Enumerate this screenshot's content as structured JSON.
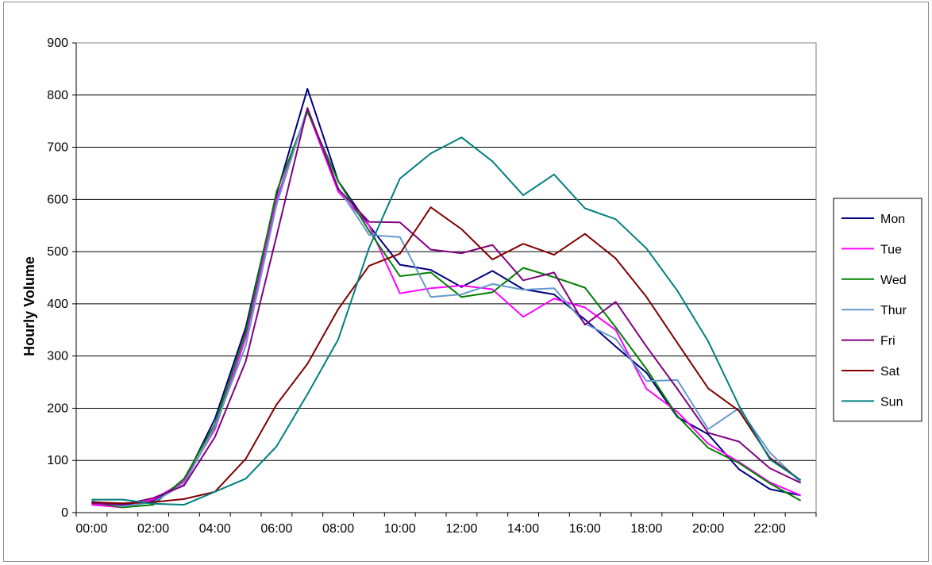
{
  "chart_data": {
    "type": "line",
    "title": "",
    "xlabel": "",
    "ylabel": "Hourly Volume",
    "ylim": [
      0,
      900
    ],
    "yticks": [
      "0",
      "100",
      "200",
      "300",
      "400",
      "500",
      "600",
      "700",
      "800",
      "900"
    ],
    "x": [
      "00:00",
      "01:00",
      "02:00",
      "03:00",
      "04:00",
      "05:00",
      "06:00",
      "07:00",
      "08:00",
      "09:00",
      "10:00",
      "11:00",
      "12:00",
      "13:00",
      "14:00",
      "15:00",
      "16:00",
      "17:00",
      "18:00",
      "19:00",
      "20:00",
      "21:00",
      "22:00",
      "23:00"
    ],
    "xtick_labels": [
      "00:00",
      "02:00",
      "04:00",
      "06:00",
      "08:00",
      "10:00",
      "12:00",
      "14:00",
      "16:00",
      "18:00",
      "20:00",
      "22:00"
    ],
    "grid": "horizontal",
    "legend_position": "right",
    "series": [
      {
        "name": "Mon",
        "color": "#000080",
        "values": [
          20,
          15,
          22,
          60,
          180,
          355,
          610,
          812,
          635,
          550,
          475,
          465,
          432,
          463,
          428,
          418,
          370,
          318,
          268,
          183,
          150,
          83,
          45,
          33
        ]
      },
      {
        "name": "Tue",
        "color": "#ff00ff",
        "values": [
          15,
          10,
          25,
          60,
          160,
          335,
          600,
          770,
          615,
          550,
          420,
          430,
          435,
          428,
          375,
          410,
          393,
          350,
          237,
          193,
          132,
          97,
          58,
          33
        ]
      },
      {
        "name": "Wed",
        "color": "#008000",
        "values": [
          20,
          10,
          15,
          65,
          170,
          345,
          615,
          768,
          635,
          540,
          453,
          460,
          413,
          422,
          469,
          451,
          431,
          355,
          275,
          185,
          124,
          95,
          56,
          23
        ]
      },
      {
        "name": "Thur",
        "color": "#6699cc",
        "values": [
          22,
          12,
          20,
          55,
          165,
          320,
          590,
          775,
          622,
          532,
          528,
          413,
          418,
          438,
          427,
          430,
          362,
          333,
          252,
          254,
          160,
          200,
          115,
          58
        ]
      },
      {
        "name": "Fri",
        "color": "#800080",
        "values": [
          18,
          15,
          28,
          52,
          145,
          290,
          530,
          775,
          620,
          557,
          556,
          504,
          497,
          513,
          445,
          460,
          360,
          404,
          318,
          237,
          153,
          136,
          85,
          57
        ]
      },
      {
        "name": "Sat",
        "color": "#800000",
        "values": [
          20,
          18,
          20,
          26,
          40,
          103,
          207,
          285,
          390,
          473,
          496,
          585,
          543,
          485,
          515,
          494,
          534,
          487,
          413,
          325,
          238,
          195,
          105,
          62
        ]
      },
      {
        "name": "Sun",
        "color": "#008080",
        "values": [
          25,
          25,
          17,
          15,
          40,
          65,
          127,
          227,
          332,
          507,
          640,
          688,
          719,
          673,
          608,
          648,
          583,
          562,
          506,
          425,
          328,
          205,
          102,
          62
        ]
      }
    ]
  }
}
